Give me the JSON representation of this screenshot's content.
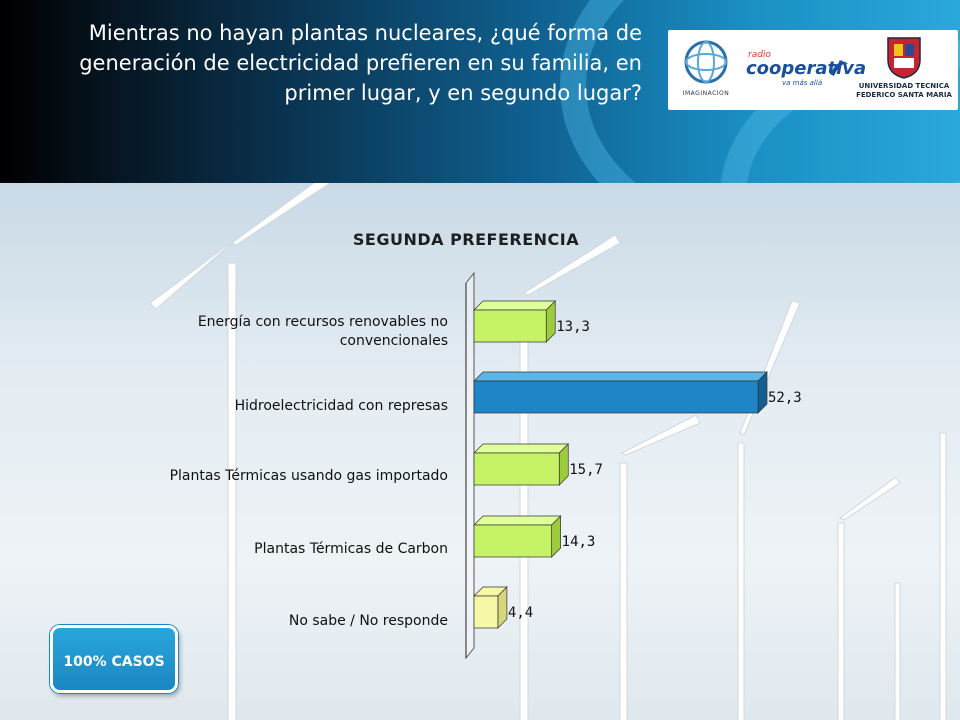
{
  "header": {
    "question": "Mientras no hayan plantas nucleares, ¿qué forma de generación de electricidad prefieren en su familia, en primer lugar, y en segundo lugar?",
    "logos": {
      "imaginacion": "IMAGINACION",
      "cooperativa_prefix": "radio",
      "cooperativa_name": "cooperativa",
      "cooperativa_tagline": "va más allá",
      "utfsm_line1": "UNIVERSIDAD TECNICA",
      "utfsm_line2": "FEDERICO SANTA MARIA"
    }
  },
  "badge": {
    "label": "100% CASOS"
  },
  "chart_data": {
    "type": "bar",
    "orientation": "horizontal",
    "style": "3d",
    "title": "SEGUNDA PREFERENCIA",
    "categories": [
      "Energía con recursos renovables no convencionales",
      "Hidroelectricidad con represas",
      "Plantas Térmicas usando gas importado",
      "Plantas Térmicas de Carbon",
      "No sabe / No responde"
    ],
    "values": [
      13.3,
      52.3,
      15.7,
      14.3,
      4.4
    ],
    "value_labels": [
      "13,3",
      "52,3",
      "15,7",
      "14,3",
      "4,4"
    ],
    "highlight_index": 1,
    "colors": {
      "default_face": "#c6f266",
      "default_top": "#dfff9a",
      "default_side": "#9ccc3c",
      "highlight_face": "#1e86c6",
      "highlight_top": "#5bb6e6",
      "highlight_side": "#125f93",
      "small_face": "#f7f7a8",
      "small_side": "#d6d67a"
    },
    "xlim": [
      0,
      55
    ],
    "grid": false,
    "legend": "none"
  }
}
